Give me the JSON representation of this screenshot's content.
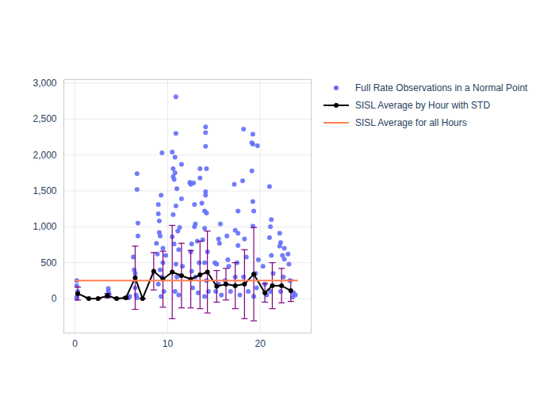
{
  "chart_data": {
    "type": "scatter",
    "xlim": [
      -1.2,
      25.5
    ],
    "xticks": [
      0,
      10,
      20
    ],
    "ylim": [
      -480,
      3050
    ],
    "yticks": [
      0,
      500,
      1000,
      1500,
      2000,
      2500,
      3000
    ],
    "grid": true,
    "legend": "right",
    "series": [
      {
        "name": "Full Rate Observations in a Normal Point",
        "type": "scatter",
        "color": "#636efa",
        "marker": "circle",
        "x": [
          0.2,
          0.2,
          0.3,
          0.2,
          0.3,
          0.2,
          3.6,
          3.6,
          3.5,
          3.7,
          5.8,
          5.9,
          6.3,
          6.4,
          6.5,
          6.5,
          6.6,
          6.7,
          6.7,
          6.8,
          6.8,
          6.7,
          8.8,
          8.9,
          9.0,
          9.0,
          9.1,
          9.1,
          9.2,
          9.3,
          9.4,
          9.5,
          9.5,
          9.2,
          9.4,
          9.0,
          9.6,
          9.3,
          9.8,
          10.5,
          10.6,
          10.6,
          10.7,
          10.8,
          10.9,
          10.9,
          10.8,
          10.9,
          11.0,
          11.1,
          11.2,
          11.5,
          11.5,
          11.3,
          10.6,
          10.5,
          10.7,
          10.9,
          11.0,
          10.8,
          11.2,
          11.6,
          12.4,
          12.5,
          12.8,
          12.9,
          13.0,
          12.9,
          12.6,
          12.5,
          13.2,
          13.5,
          13.5,
          13.7,
          13.8,
          13.4,
          13.0,
          12.7,
          13.3,
          12.6,
          14.1,
          14.1,
          14.1,
          14.2,
          14.1,
          14.1,
          14.0,
          14.2,
          14.0,
          14.3,
          14.0,
          14.2,
          14.4,
          14.0,
          15.1,
          15.3,
          15.7,
          15.6,
          15.5,
          15.5,
          15.8,
          15.2,
          16.4,
          16.5,
          16.6,
          16.2,
          16.8,
          17.2,
          17.3,
          17.6,
          17.6,
          17.6,
          17.5,
          17.3,
          17.8,
          18.2,
          18.1,
          18.3,
          18.5,
          18.2,
          18.7,
          19.2,
          19.1,
          19.2,
          19.1,
          19.2,
          19.3,
          19.2,
          19.7,
          19.8,
          19.5,
          19.6,
          19.3,
          20.3,
          20.5,
          20.7,
          21.0,
          21.1,
          21.0,
          21.2,
          21.2,
          21.4,
          21.1,
          22.1,
          22.2,
          22.1,
          22.4,
          22.6,
          22.6,
          22.5,
          22.2,
          23.0,
          23.1,
          23.2,
          23.6,
          23.5,
          23.8
        ],
        "values": [
          250,
          180,
          60,
          20,
          100,
          0,
          140,
          100,
          30,
          60,
          10,
          30,
          580,
          400,
          350,
          150,
          50,
          1740,
          1520,
          1050,
          870,
          10,
          770,
          620,
          1310,
          1180,
          1080,
          920,
          870,
          1440,
          2030,
          700,
          500,
          400,
          300,
          200,
          100,
          30,
          600,
          2040,
          1810,
          1700,
          1660,
          1750,
          2810,
          2300,
          1970,
          1290,
          1530,
          940,
          680,
          1870,
          1390,
          990,
          1170,
          860,
          760,
          480,
          300,
          100,
          50,
          450,
          1620,
          1590,
          1610,
          1310,
          1040,
          1000,
          760,
          650,
          800,
          1810,
          1680,
          1330,
          820,
          500,
          300,
          150,
          80,
          380,
          2390,
          2310,
          2120,
          1810,
          1490,
          1440,
          1220,
          1190,
          980,
          650,
          500,
          250,
          100,
          30,
          500,
          480,
          1040,
          770,
          830,
          200,
          50,
          100,
          870,
          540,
          450,
          250,
          100,
          1590,
          950,
          910,
          1220,
          740,
          500,
          300,
          50,
          2360,
          1640,
          830,
          580,
          300,
          100,
          2290,
          2170,
          2150,
          1780,
          1350,
          1220,
          1010,
          2130,
          540,
          350,
          150,
          30,
          450,
          200,
          50,
          1560,
          1000,
          850,
          1100,
          600,
          350,
          100,
          910,
          780,
          730,
          600,
          700,
          550,
          300,
          100,
          620,
          480,
          250,
          80,
          20,
          50
        ]
      },
      {
        "name": "SISL Average by Hour with STD",
        "type": "line",
        "color": "#000000",
        "marker": "circle",
        "x": [
          0.3,
          1.5,
          2.5,
          3.5,
          4.5,
          5.5,
          6.5,
          7.3,
          8.5,
          9.5,
          10.5,
          11.5,
          12.5,
          13.5,
          14.3,
          15.3,
          16.3,
          17.3,
          18.3,
          19.3,
          20.5,
          21.3,
          22.3,
          23.3
        ],
        "values": [
          70,
          0,
          0,
          40,
          0,
          10,
          290,
          0,
          380,
          270,
          370,
          320,
          270,
          330,
          370,
          170,
          200,
          180,
          200,
          340,
          80,
          180,
          180,
          110
        ],
        "std": [
          90,
          0,
          0,
          30,
          0,
          15,
          440,
          0,
          260,
          390,
          650,
          450,
          400,
          470,
          570,
          220,
          220,
          320,
          480,
          650,
          130,
          320,
          240,
          150
        ]
      },
      {
        "name": "SISL Average for all Hours",
        "type": "line",
        "color": "#ff7f50",
        "x": [
          0,
          24
        ],
        "values": [
          250,
          250
        ]
      }
    ]
  }
}
